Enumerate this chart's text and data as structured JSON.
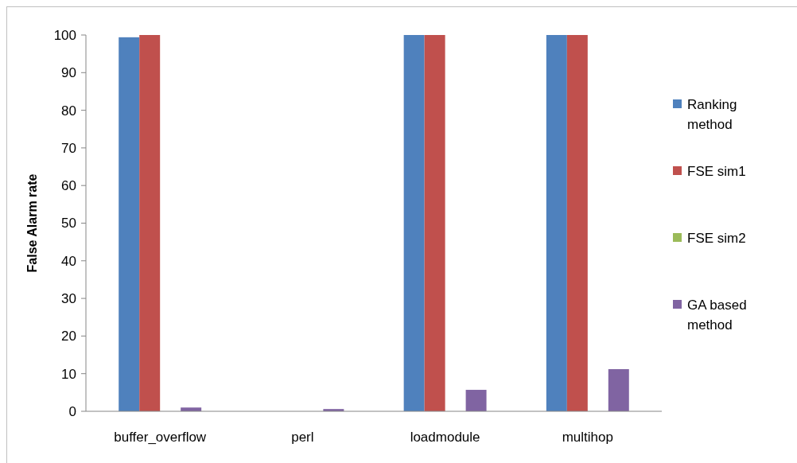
{
  "chart_data": {
    "type": "bar",
    "ylabel": "False Alarm rate",
    "categories": [
      "buffer_overflow",
      "perl",
      "loadmodule",
      "multihop"
    ],
    "series": [
      {
        "name": "Ranking method",
        "color": "#4f81bd",
        "values": [
          99.4,
          0,
          100,
          100
        ]
      },
      {
        "name": "FSE sim1",
        "color": "#c0504d",
        "values": [
          100,
          0,
          100,
          100
        ]
      },
      {
        "name": "FSE sim2",
        "color": "#9bbb59",
        "values": [
          0,
          0,
          0,
          0
        ]
      },
      {
        "name": "GA based method",
        "color": "#8064a2",
        "values": [
          1,
          0.6,
          5.7,
          11.2
        ]
      }
    ],
    "ylim": [
      0,
      100
    ],
    "yticks": [
      0,
      10,
      20,
      30,
      40,
      50,
      60,
      70,
      80,
      90,
      100
    ],
    "grid": false,
    "legend": "right"
  }
}
